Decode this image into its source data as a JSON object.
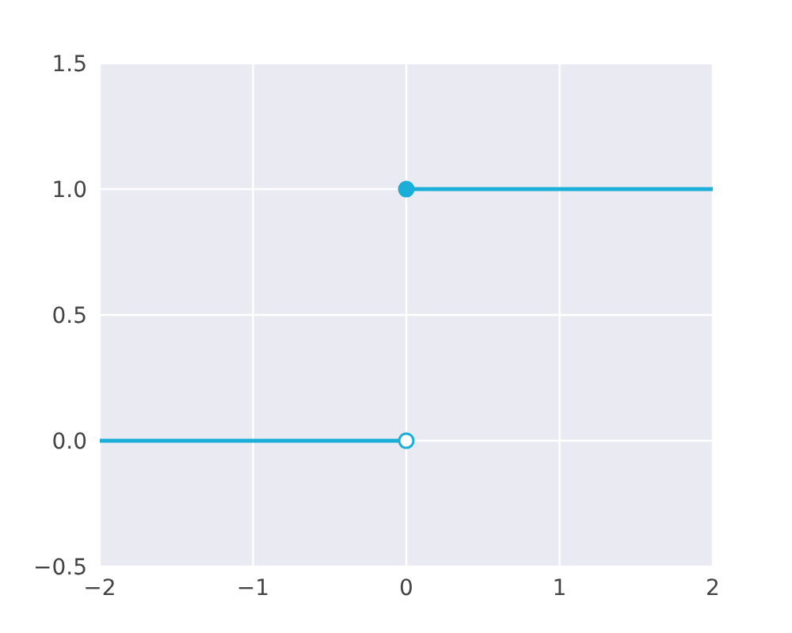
{
  "chart_data": {
    "type": "line",
    "xlim": [
      -2,
      2
    ],
    "xticks": [
      {
        "value": -2,
        "label": "−2"
      },
      {
        "value": -1,
        "label": "−1"
      },
      0,
      1,
      2
    ],
    "ylim": [
      -0.5,
      1.5
    ],
    "yticks": [
      {
        "value": -0.5,
        "label": "−0.5"
      },
      {
        "value": 0,
        "label": "0.0"
      },
      {
        "value": 0.5,
        "label": "0.5"
      },
      {
        "value": 1,
        "label": "1.0"
      },
      {
        "value": 1.5,
        "label": "1.5"
      }
    ],
    "grid": true,
    "marker": "none",
    "line_style": "solid",
    "series": [
      {
        "color": "#1aaed8",
        "x": [
          -2,
          0
        ],
        "values": [
          0,
          0
        ]
      },
      {
        "color": "#1aaed8",
        "x": [
          0,
          2
        ],
        "values": [
          1,
          1
        ]
      },
      {
        "type": "scatter",
        "color": "#1aaed8",
        "x": [
          0
        ],
        "values": [
          1
        ],
        "marker": "circle"
      },
      {
        "type": "scatter",
        "color": "#ffffff",
        "x": [
          0
        ],
        "values": [
          0
        ],
        "marker": "circle"
      }
    ]
  }
}
